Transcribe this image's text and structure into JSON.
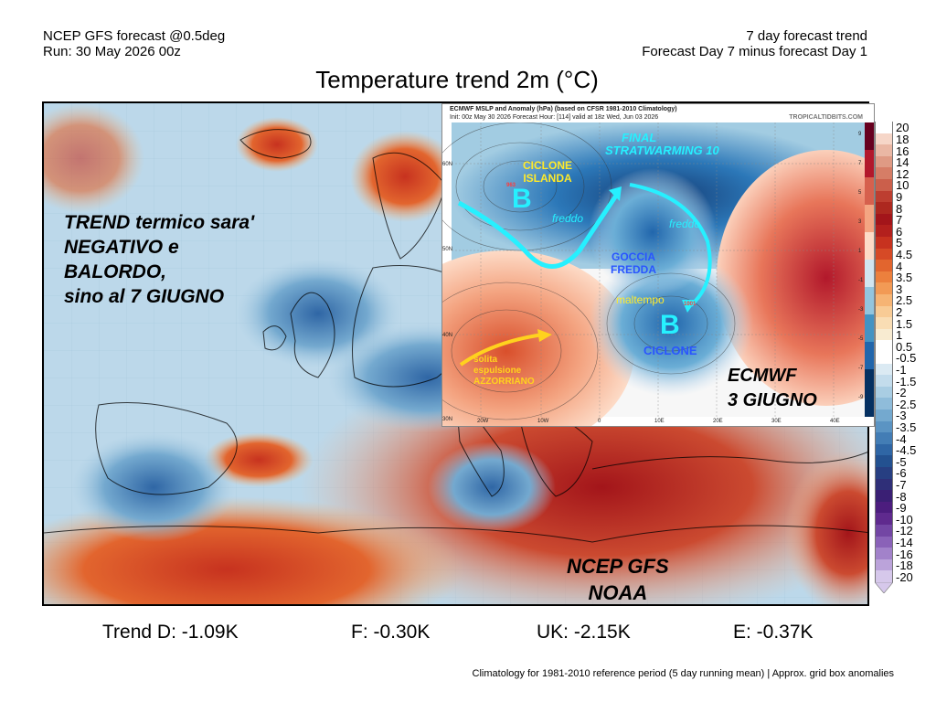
{
  "header": {
    "left_line1": "NCEP GFS forecast @0.5deg",
    "left_line2": "Run: 30 May 2026 00z",
    "right_line1": "7 day forecast trend",
    "right_line2": "Forecast Day 7 minus forecast Day 1"
  },
  "title": "Temperature trend 2m (°C)",
  "overlay": {
    "trend_line1": "TREND termico sara'",
    "trend_line2": "NEGATIVO e",
    "trend_line3": "BALORDO,",
    "trend_line4": "sino al 7 GIUGNO",
    "ncep_line1": "NCEP GFS",
    "ncep_line2": "NOAA"
  },
  "inset": {
    "header_line1": "ECMWF MSLP and Anomaly (hPa) (based on CFSR 1981-2010 Climatology)",
    "header_line2": "Init: 00z May 30 2026   Forecast Hour: [114]   valid at 18z Wed, Jun 03 2026",
    "source": "TROPICALTIDBITS.COM",
    "lat_labels": [
      "60N",
      "50N",
      "40N",
      "30N"
    ],
    "lon_labels": [
      "20W",
      "10W",
      "0",
      "10E",
      "20E",
      "30E",
      "40E"
    ],
    "scale_labels": [
      "9",
      "7",
      "5",
      "3",
      "1",
      "-1",
      "-3",
      "-5",
      "-7",
      "-9"
    ],
    "pressure_label_1": "963",
    "pressure_label_2": "1001",
    "annotations": {
      "ciclone_islanda_1": "CICLONE",
      "ciclone_islanda_2": "ISLANDA",
      "b1": "B",
      "freddo1": "freddo",
      "final_1": "FINAL",
      "final_2": "STRATWARMING 10",
      "freddo2": "freddo",
      "goccia_1": "GOCCIA",
      "goccia_2": "FREDDA",
      "maltempo": "maltempo",
      "b2": "B",
      "ciclone": "CICLONE",
      "solita_1": "solita",
      "solita_2": "espulsione",
      "solita_3": "AZZORRIANO",
      "ecmwf_1": "ECMWF",
      "ecmwf_2": "3 GIUGNO"
    }
  },
  "trends": {
    "d": "Trend D: -1.09K",
    "f": "F: -0.30K",
    "uk": "UK: -2.15K",
    "e": "E: -0.37K"
  },
  "footnote": "Climatology for 1981-2010 reference period (5 day running mean) | Approx. grid box anomalies",
  "colorbar": {
    "labels": [
      "20",
      "18",
      "16",
      "14",
      "12",
      "10",
      "9",
      "8",
      "7",
      "6",
      "5",
      "4.5",
      "4",
      "3.5",
      "3",
      "2.5",
      "2",
      "1.5",
      "1",
      "0.5",
      "-0.5",
      "-1",
      "-1.5",
      "-2",
      "-2.5",
      "-3",
      "-3.5",
      "-4",
      "-4.5",
      "-5",
      "-6",
      "-7",
      "-8",
      "-9",
      "-10",
      "-12",
      "-14",
      "-16",
      "-18",
      "-20"
    ],
    "colors": [
      "#ffffff",
      "#f6d6c8",
      "#eab7a4",
      "#df9a84",
      "#d67d66",
      "#cb5f4b",
      "#bd3e30",
      "#ad281f",
      "#a3151a",
      "#b3201d",
      "#c7321f",
      "#d64a26",
      "#e2652e",
      "#ec803d",
      "#f29a55",
      "#f6b474",
      "#f8cb95",
      "#f9ddb4",
      "#f8ebd1",
      "#ffffff",
      "#ffffff",
      "#dbeaf3",
      "#c3dcec",
      "#a9cde3",
      "#8fbcda",
      "#74a9cf",
      "#5b94c3",
      "#437db5",
      "#2f66a5",
      "#235190",
      "#273f82",
      "#2f2f78",
      "#3a1f74",
      "#4c1d7e",
      "#5f2a8e",
      "#7346a4",
      "#8a62b8",
      "#a282ca",
      "#bba3da",
      "#d6c8eb"
    ]
  }
}
